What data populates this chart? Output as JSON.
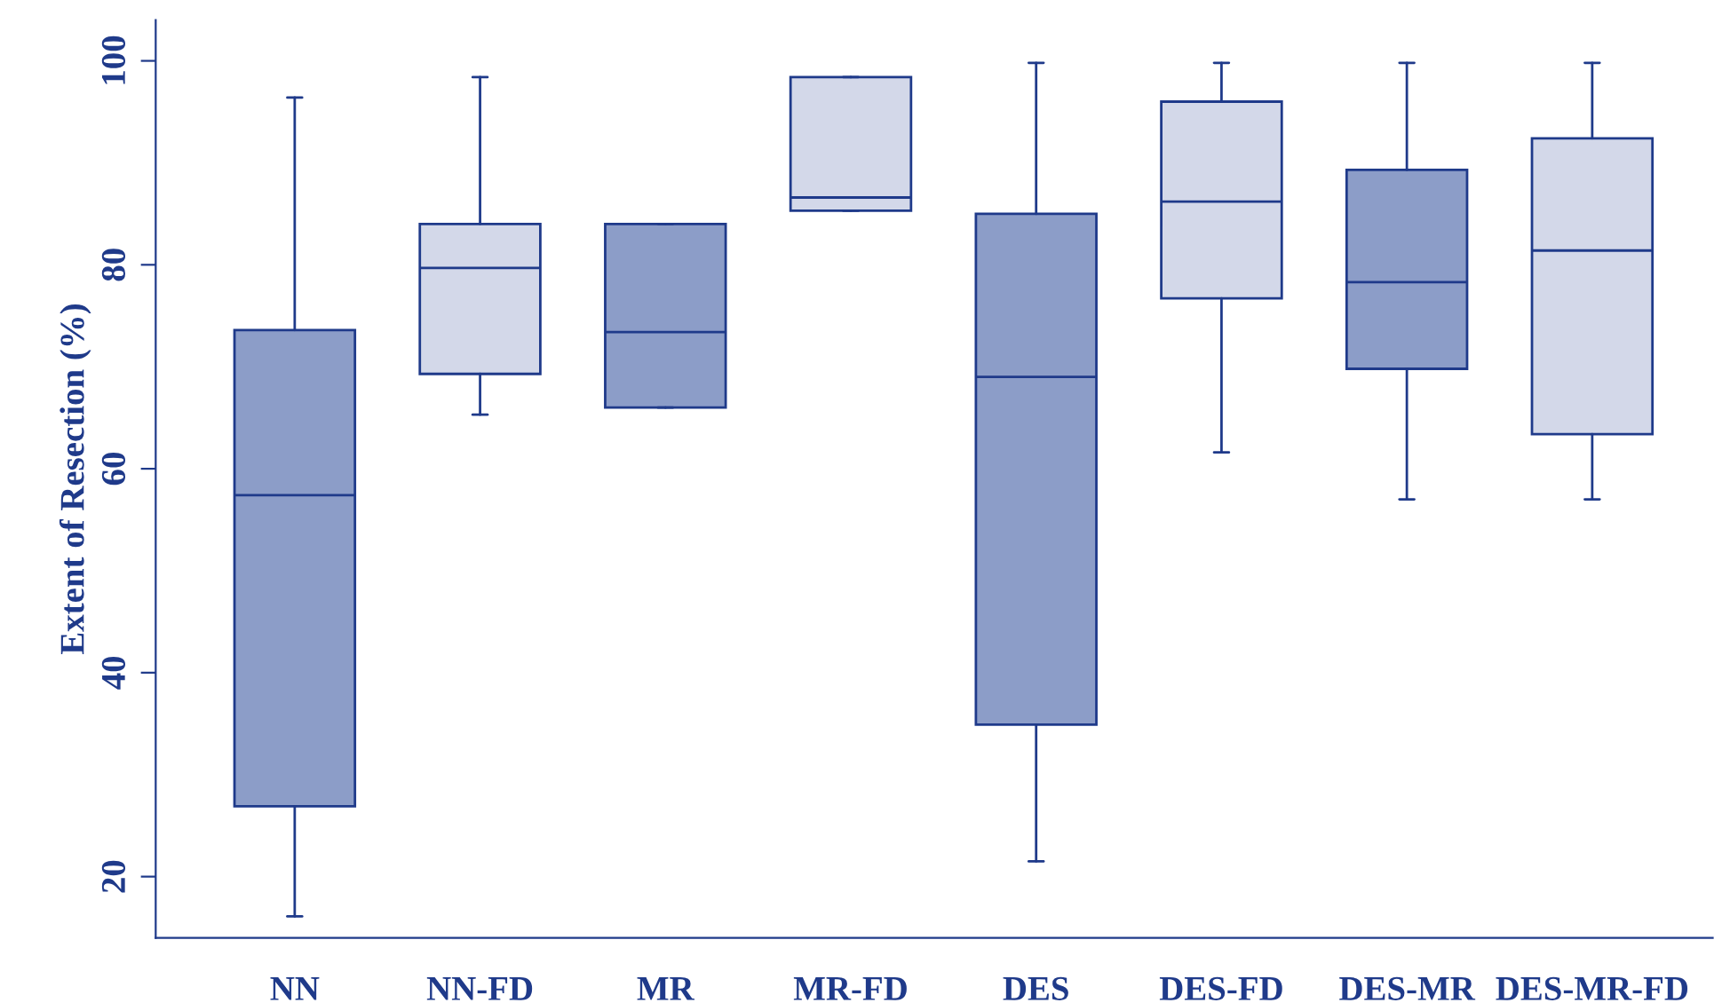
{
  "chart_data": {
    "type": "box",
    "ylabel": "Extent of Resection (%)",
    "categories": [
      "NN",
      "NN-FD",
      "MR",
      "MR-FD",
      "DES",
      "DES-FD",
      "DES-MR",
      "DES-MR-FD"
    ],
    "boxes": [
      {
        "low": 16.1,
        "q1": 26.9,
        "median": 57.4,
        "q3": 73.6,
        "high": 96.4
      },
      {
        "low": 65.3,
        "q1": 69.3,
        "median": 79.7,
        "q3": 84.0,
        "high": 98.4
      },
      {
        "low": 66.0,
        "q1": 66.0,
        "median": 73.4,
        "q3": 84.0,
        "high": 84.0
      },
      {
        "low": 85.3,
        "q1": 85.3,
        "median": 86.6,
        "q3": 98.4,
        "high": 98.4
      },
      {
        "low": 21.5,
        "q1": 34.9,
        "median": 69.0,
        "q3": 85.0,
        "high": 99.8
      },
      {
        "low": 61.6,
        "q1": 76.7,
        "median": 86.2,
        "q3": 96.0,
        "high": 99.8
      },
      {
        "low": 57.0,
        "q1": 69.8,
        "median": 78.3,
        "q3": 89.3,
        "high": 99.8
      },
      {
        "low": 57.0,
        "q1": 63.4,
        "median": 81.4,
        "q3": 92.4,
        "high": 99.8
      }
    ],
    "colors": [
      "#8c9dc8",
      "#d3d8e9",
      "#8c9dc8",
      "#d3d8e9",
      "#8c9dc8",
      "#d3d8e9",
      "#8c9dc8",
      "#d3d8e9"
    ],
    "ylim": [
      14,
      104
    ],
    "yticks": [
      20,
      40,
      60,
      80,
      100
    ],
    "grid": false,
    "legend": false
  }
}
